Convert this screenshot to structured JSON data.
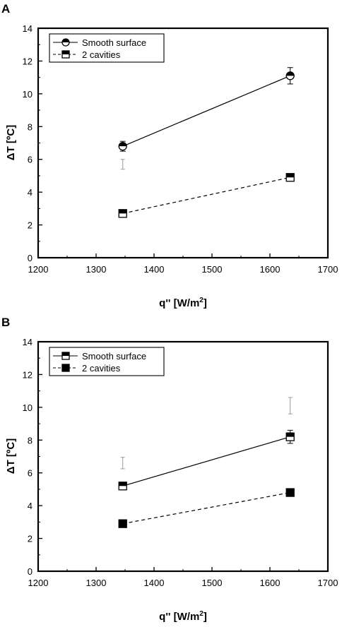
{
  "figure": {
    "panels": [
      {
        "letter": "A",
        "xlabel": "q'' [W/m",
        "xlabel_sup": "2",
        "xlabel_end": "]",
        "ylabel": "ΔT [ºC]"
      },
      {
        "letter": "B",
        "xlabel": "q'' [W/m",
        "xlabel_sup": "2",
        "xlabel_end": "]",
        "ylabel": "ΔT [ºC]"
      }
    ]
  },
  "chart_data": [
    {
      "type": "line",
      "panel": "A",
      "xlabel": "q'' [W/m2]",
      "ylabel": "ΔT [ºC]",
      "xlim": [
        1200,
        1700
      ],
      "ylim": [
        0,
        14
      ],
      "xticks": [
        1200,
        1300,
        1400,
        1500,
        1600,
        1700
      ],
      "yticks": [
        0,
        2,
        4,
        6,
        8,
        10,
        12,
        14
      ],
      "grid": false,
      "legend_position": "top-left",
      "series": [
        {
          "name": "Smooth surface",
          "marker": "circle-half",
          "line": "solid",
          "x": [
            1346,
            1635
          ],
          "y": [
            6.8,
            11.1
          ],
          "error": [
            0.3,
            0.5
          ]
        },
        {
          "name": "2 cavities",
          "marker": "square-half",
          "line": "dashed",
          "x": [
            1346,
            1635
          ],
          "y": [
            2.7,
            4.9
          ],
          "error": [
            0.15,
            0.15
          ]
        }
      ],
      "extra_markers": [
        {
          "x": 1346,
          "y": 5.7,
          "error": 0.3
        }
      ]
    },
    {
      "type": "line",
      "panel": "B",
      "xlabel": "q'' [W/m2]",
      "ylabel": "ΔT [ºC]",
      "xlim": [
        1200,
        1700
      ],
      "ylim": [
        0,
        14
      ],
      "xticks": [
        1200,
        1300,
        1400,
        1500,
        1600,
        1700
      ],
      "yticks": [
        0,
        2,
        4,
        6,
        8,
        10,
        12,
        14
      ],
      "grid": false,
      "legend_position": "top-left",
      "series": [
        {
          "name": "Smooth surface",
          "marker": "square-half",
          "line": "solid",
          "x": [
            1346,
            1635
          ],
          "y": [
            5.2,
            8.2
          ],
          "error": [
            0.15,
            0.4
          ]
        },
        {
          "name": "2 cavities",
          "marker": "square-filled",
          "line": "dashed",
          "x": [
            1346,
            1635
          ],
          "y": [
            2.9,
            4.8
          ],
          "error": [
            0,
            0
          ]
        }
      ],
      "extra_markers": [
        {
          "x": 1346,
          "y": 6.6,
          "error": 0.35
        },
        {
          "x": 1635,
          "y": 10.1,
          "error": 0.5
        }
      ]
    }
  ]
}
